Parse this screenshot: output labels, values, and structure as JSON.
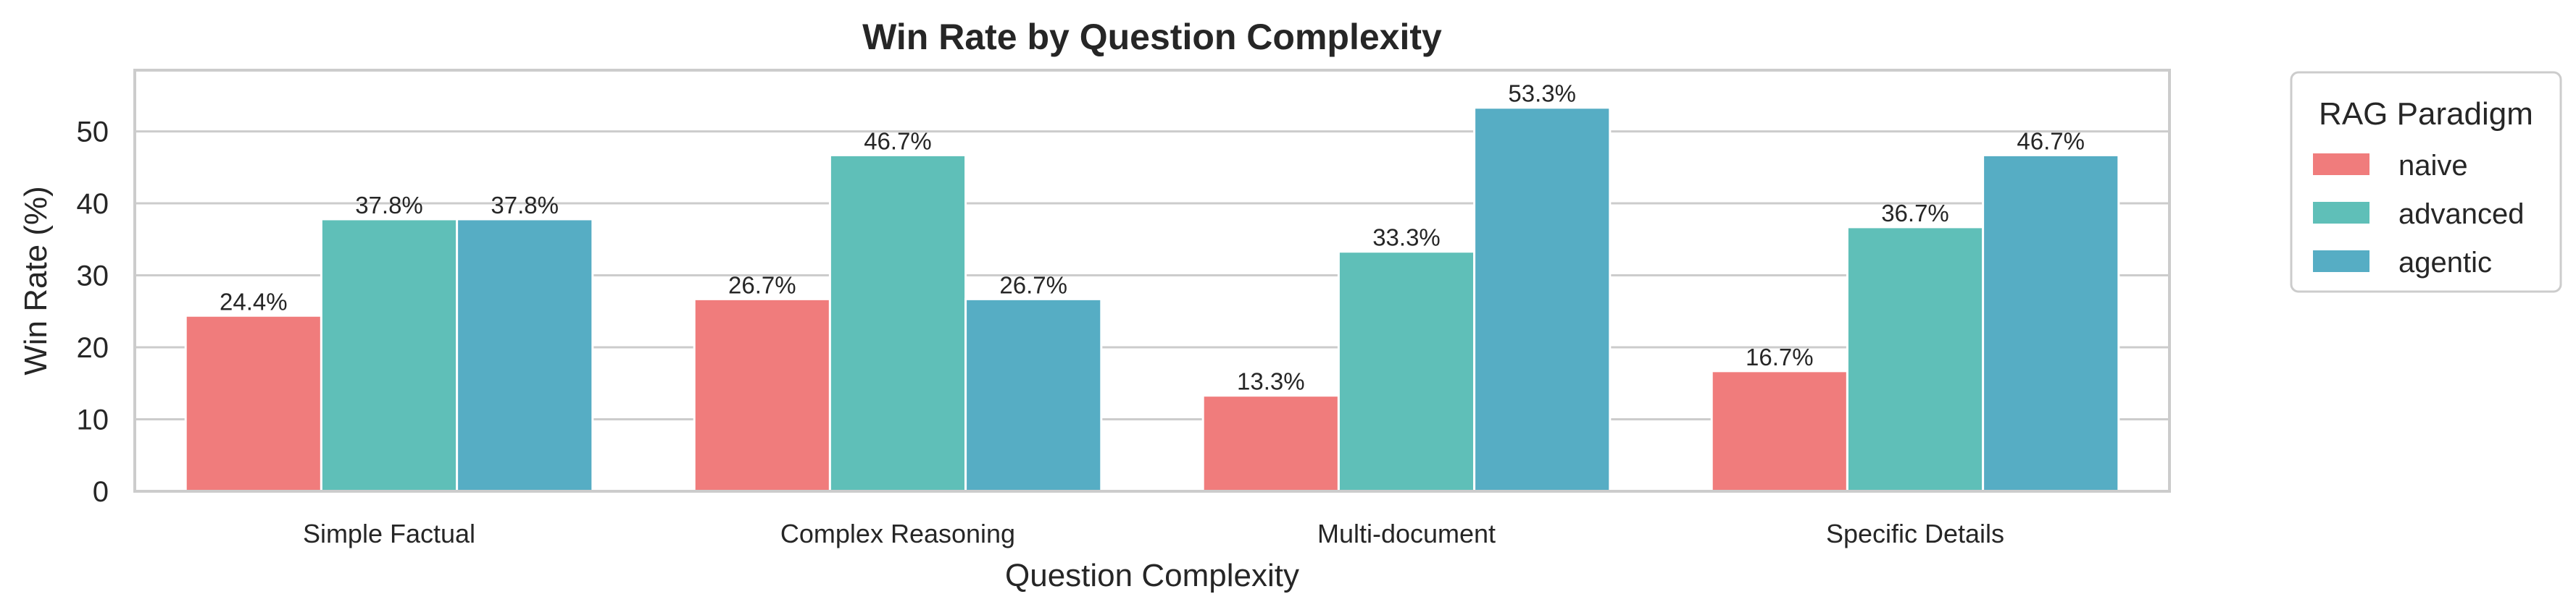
{
  "chart_data": {
    "type": "bar",
    "title": "Win Rate by Question Complexity",
    "xlabel": "Question Complexity",
    "ylabel": "Win Rate (%)",
    "categories": [
      "Simple Factual",
      "Complex Reasoning",
      "Multi-document",
      "Specific Details"
    ],
    "series": [
      {
        "name": "naive",
        "color": "#F07C7C",
        "values": [
          24.4,
          26.7,
          13.3,
          16.7
        ],
        "labels": [
          "24.4%",
          "26.7%",
          "13.3%",
          "16.7%"
        ]
      },
      {
        "name": "advanced",
        "color": "#5FBFB8",
        "values": [
          37.8,
          46.7,
          33.3,
          36.7
        ],
        "labels": [
          "37.8%",
          "46.7%",
          "33.3%",
          "36.7%"
        ]
      },
      {
        "name": "agentic",
        "color": "#56ADC4",
        "values": [
          37.8,
          26.7,
          53.3,
          46.7
        ],
        "labels": [
          "37.8%",
          "26.7%",
          "53.3%",
          "46.7%"
        ]
      }
    ],
    "ylim": [
      0,
      58.5
    ],
    "yticks": [
      0,
      10,
      20,
      30,
      40,
      50
    ],
    "grid": true,
    "legend": {
      "title": "RAG Paradigm",
      "placement": "outside-right"
    }
  }
}
